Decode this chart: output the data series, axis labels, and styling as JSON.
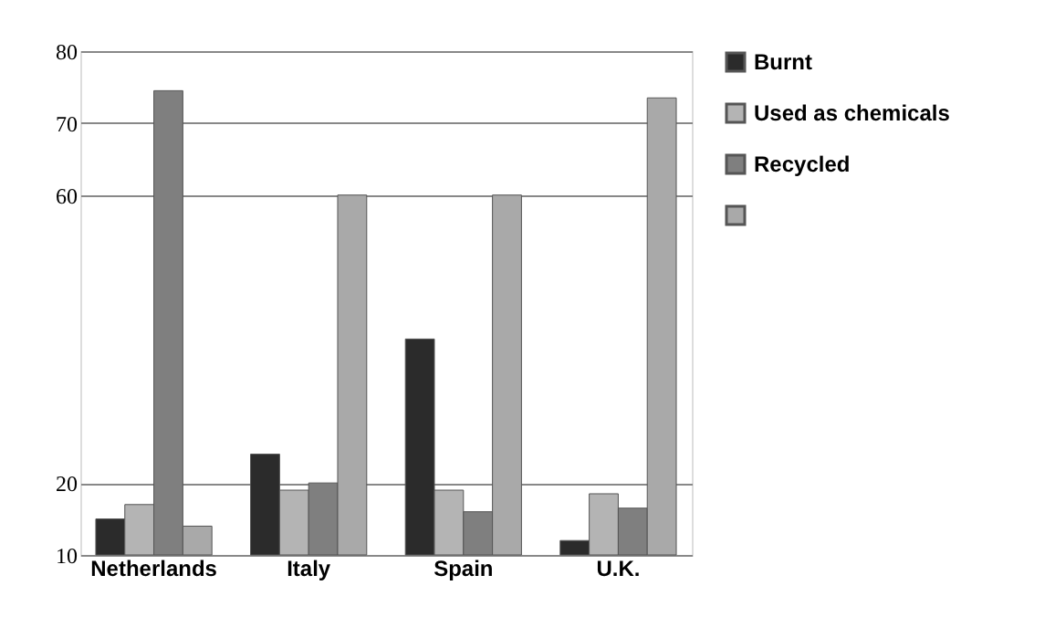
{
  "chart_data": {
    "type": "bar",
    "categories": [
      "Netherlands",
      "Italy",
      "Spain",
      "U.K."
    ],
    "series": [
      {
        "name": "Burnt",
        "color": "#2b2b2b",
        "values": [
          15,
          24,
          40,
          12
        ]
      },
      {
        "name": "Used as chemicals",
        "color": "#b4b4b4",
        "values": [
          17,
          19,
          19,
          18.5
        ]
      },
      {
        "name": "Recycled",
        "color": "#7f7f7f",
        "values": [
          74.5,
          20,
          16,
          16.5
        ]
      },
      {
        "color": "#a9a9a9",
        "values": [
          14,
          60,
          60,
          73.5
        ]
      }
    ],
    "ylim": [
      10,
      80
    ],
    "yticks": [
      10,
      20,
      60,
      70,
      80
    ],
    "grid": "y",
    "legend": "right"
  }
}
